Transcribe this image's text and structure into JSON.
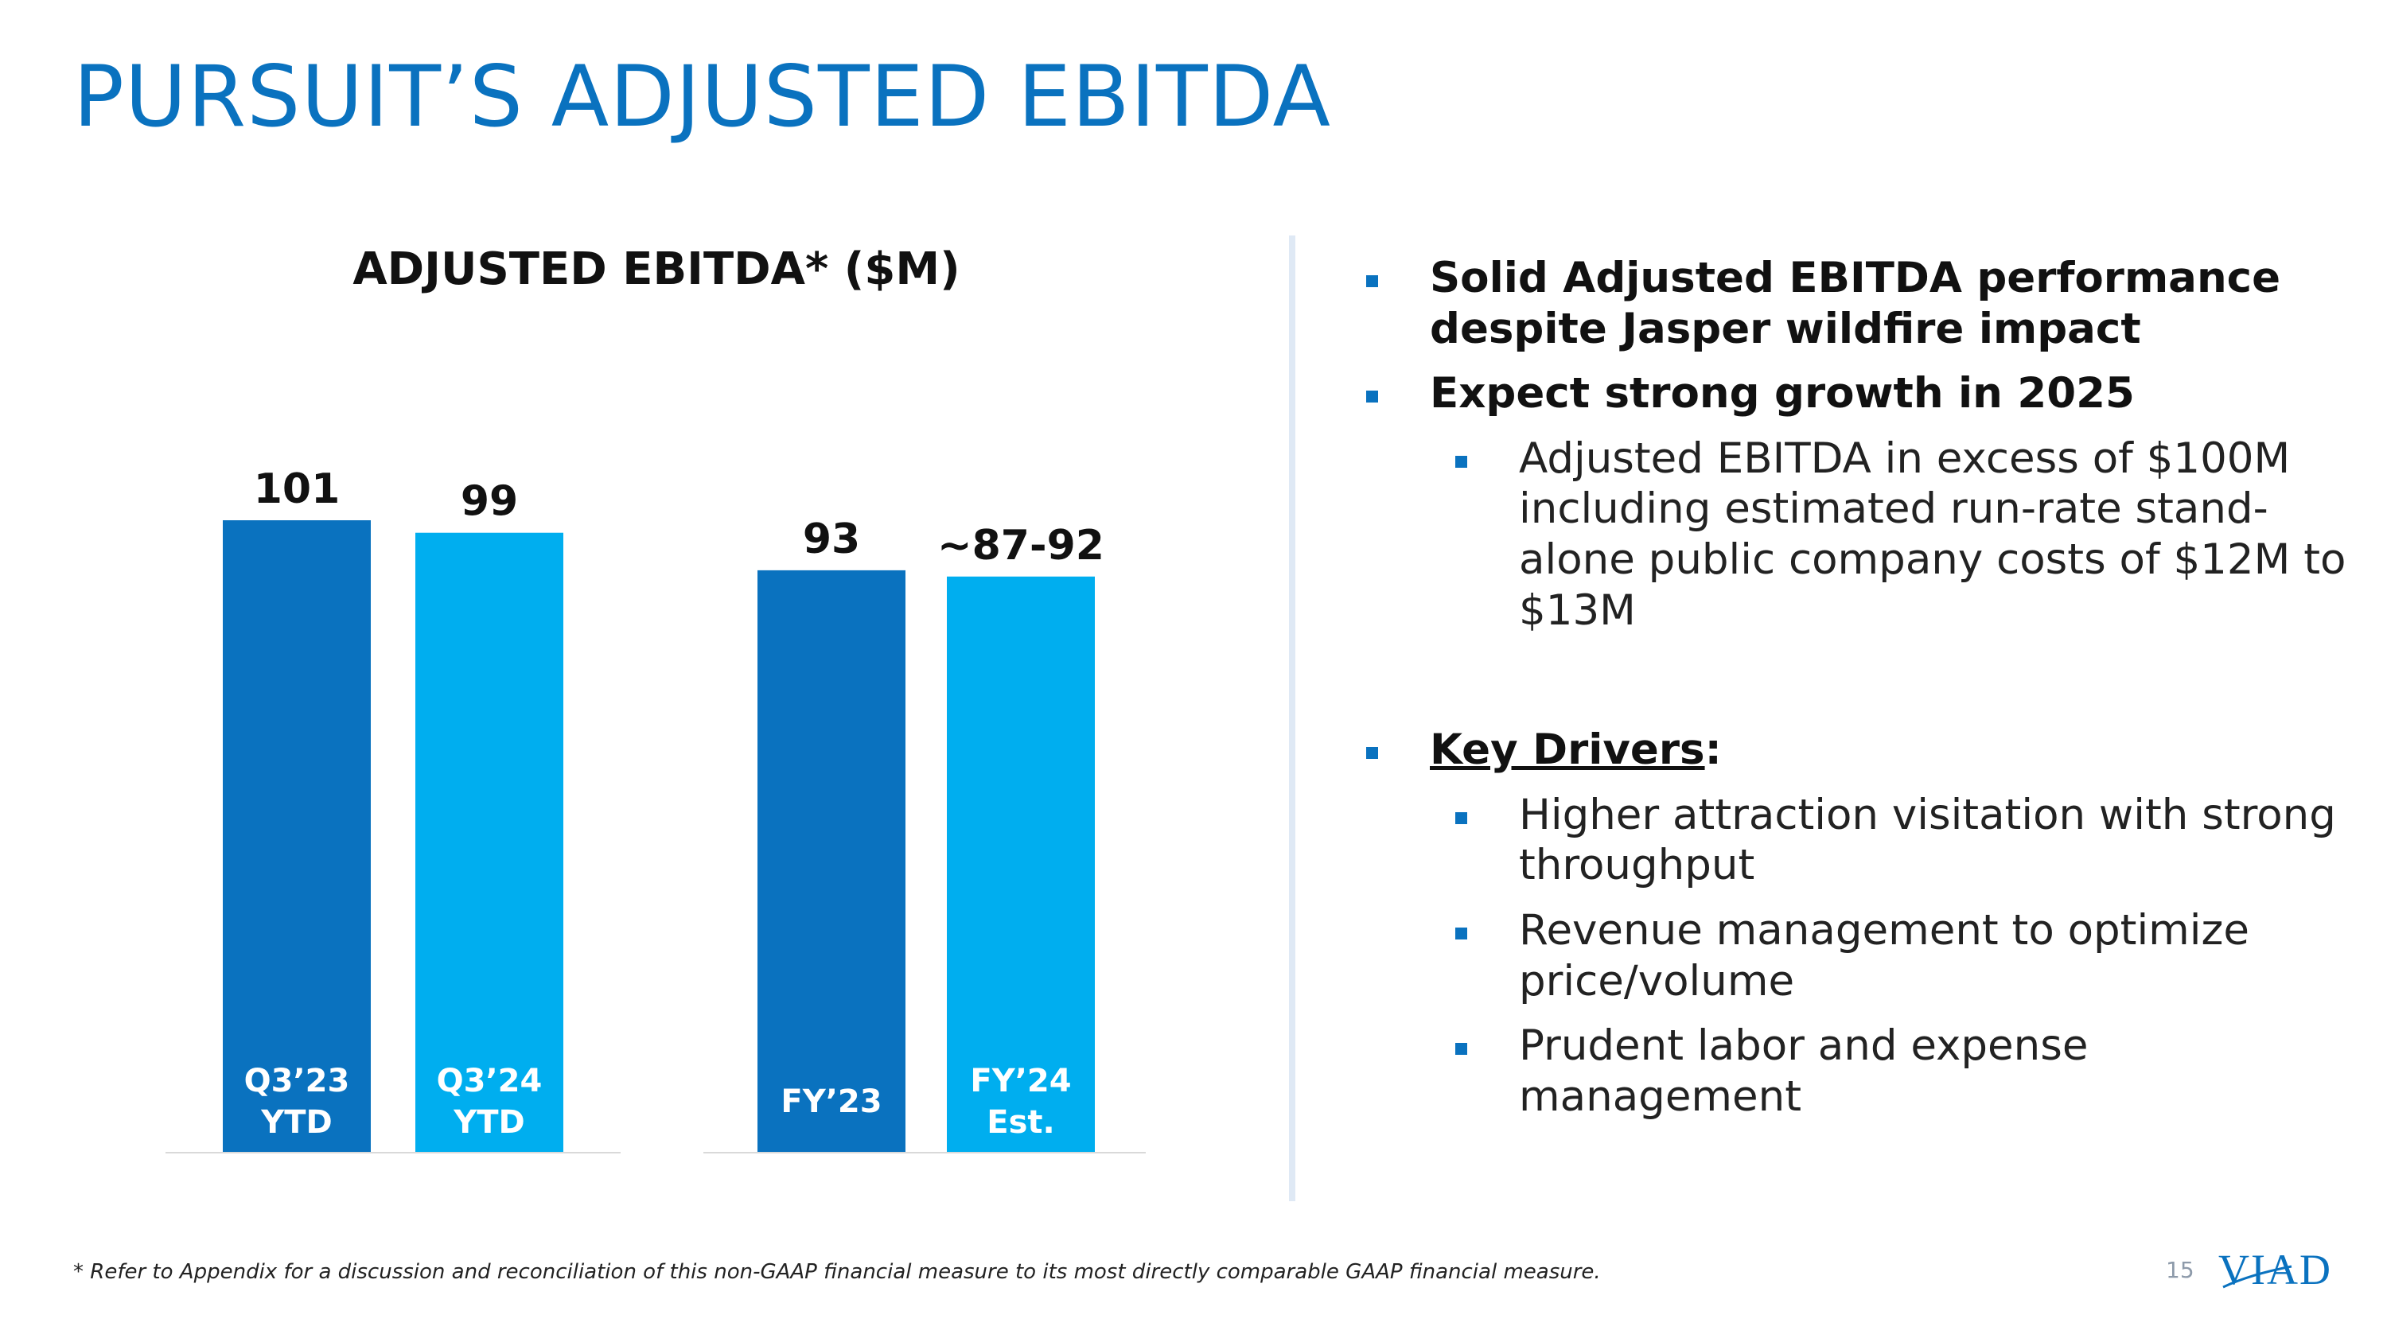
{
  "page": {
    "title": "PURSUIT’S ADJUSTED EBITDA",
    "footnote": "* Refer to Appendix for a discussion and reconciliation of this non-GAAP financial measure to its most directly comparable GAAP financial measure.",
    "page_number": "15",
    "logo_text": "VIAD"
  },
  "colors": {
    "title": "#0a72bf",
    "dark_bar": "#0a72bf",
    "light_bar": "#00aeef",
    "bullet": "#0a72bf"
  },
  "chart_data": {
    "type": "bar",
    "title": "ADJUSTED EBITDA* ($M)",
    "xlabel": "",
    "ylabel": "",
    "ylim": [
      0,
      101
    ],
    "grid": false,
    "legend": "none",
    "groups": [
      {
        "bars": [
          {
            "line1": "Q3’23",
            "line2": "YTD",
            "value": 101,
            "label": "101",
            "color": "#0a72bf"
          },
          {
            "line1": "Q3’24",
            "line2": "YTD",
            "value": 99,
            "label": "99",
            "color": "#00aeef"
          }
        ]
      },
      {
        "bars": [
          {
            "line1": "FY’23",
            "line2": "",
            "value": 93,
            "label": "93",
            "color": "#0a72bf"
          },
          {
            "line1": "FY’24",
            "line2": "Est.",
            "value": 92,
            "label": "~87-92",
            "color": "#00aeef"
          }
        ]
      }
    ]
  },
  "bullets": {
    "b1": "Solid Adjusted EBITDA performance despite Jasper wildfire impact",
    "b2": "Expect strong growth in 2025",
    "b2_sub": "Adjusted EBITDA in excess of $100M including estimated run-rate stand-alone public company costs of $12M to $13M",
    "b3": "Key Drivers",
    "b3_suffix": ":",
    "drivers": [
      "Higher attraction visitation with strong throughput",
      "Revenue management to optimize price/volume",
      "Prudent labor and expense management"
    ]
  }
}
